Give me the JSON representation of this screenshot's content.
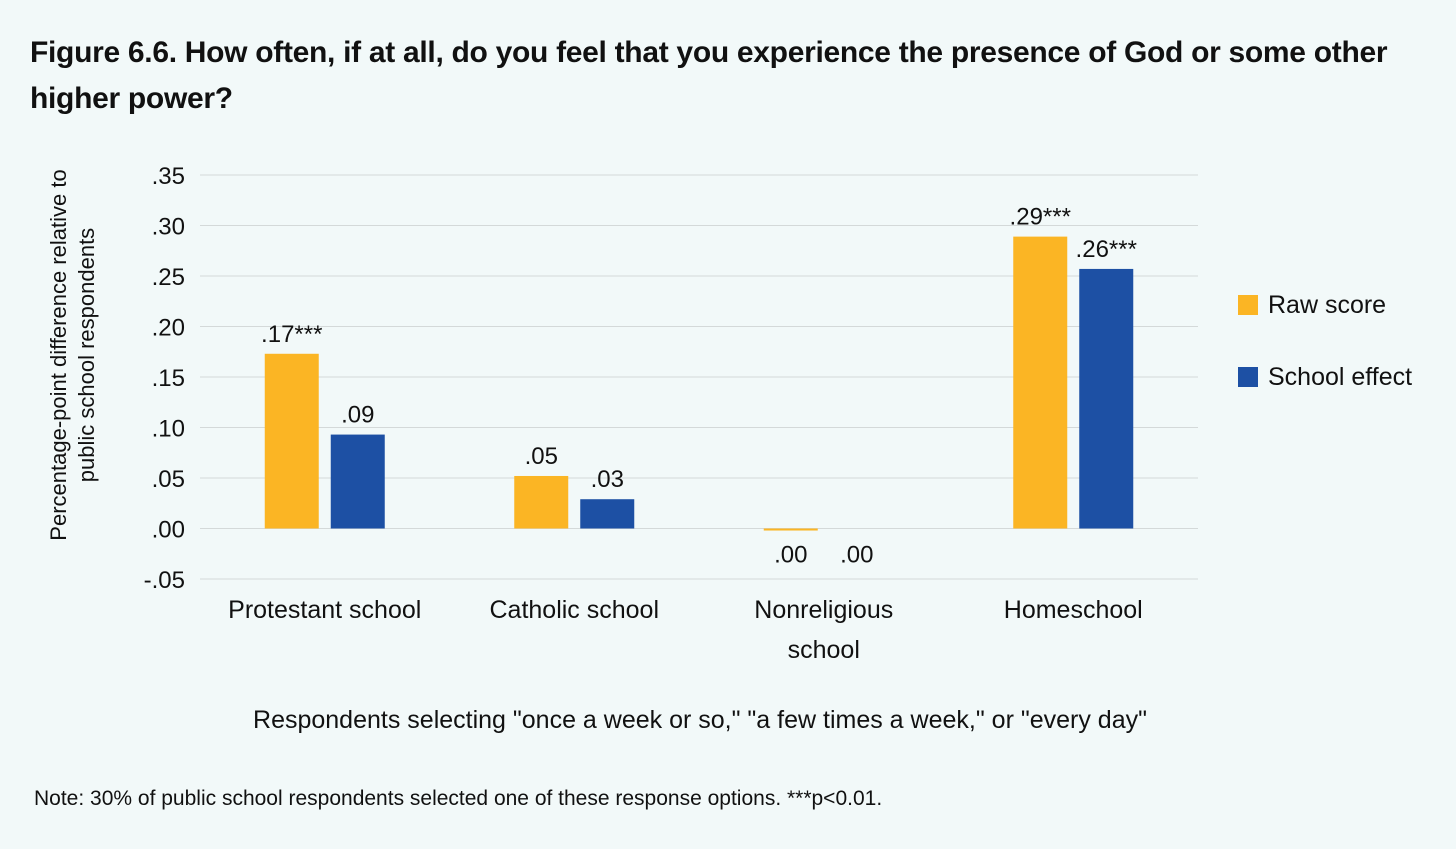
{
  "title": "Figure 6.6. How often, if at all, do you feel that you experience the presence of God or some other higher power?",
  "note": "Note: 30% of public school respondents selected one of these response options. ***p<0.01.",
  "colors": {
    "raw": "#fbb524",
    "school": "#1d50a4",
    "grid": "#d4d9d9",
    "background": "#f2f9f9"
  },
  "chart_data": {
    "type": "bar",
    "title": "Figure 6.6. How often, if at all, do you feel that you experience the presence of God or some other higher power?",
    "ylabel": "Percentage-point difference relative to public school respondents",
    "xlabel": "Respondents selecting \"once a week or so,\" \"a few times a week,\" or \"every day\"",
    "ylim": [
      -0.05,
      0.35
    ],
    "yticks": [
      0.35,
      0.3,
      0.25,
      0.2,
      0.15,
      0.1,
      0.05,
      0.0,
      -0.05
    ],
    "ytick_labels": [
      ".35",
      ".30",
      ".25",
      ".20",
      ".15",
      ".10",
      ".05",
      ".00",
      "-.05"
    ],
    "grid": true,
    "legend_position": "right",
    "categories": [
      "Protestant school",
      "Catholic school",
      "Nonreligious school",
      "Homeschool"
    ],
    "category_lines": [
      [
        "Protestant school"
      ],
      [
        "Catholic school"
      ],
      [
        "Nonreligious",
        "school"
      ],
      [
        "Homeschool"
      ]
    ],
    "series": [
      {
        "name": "Raw score",
        "color": "#fbb524",
        "values": [
          0.173,
          0.052,
          -0.002,
          0.289
        ],
        "labels": [
          ".17***",
          ".05",
          ".00",
          ".29***"
        ]
      },
      {
        "name": "School effect",
        "color": "#1d50a4",
        "values": [
          0.093,
          0.029,
          0.0,
          0.257
        ],
        "labels": [
          ".09",
          ".03",
          ".00",
          ".26***"
        ]
      }
    ]
  }
}
